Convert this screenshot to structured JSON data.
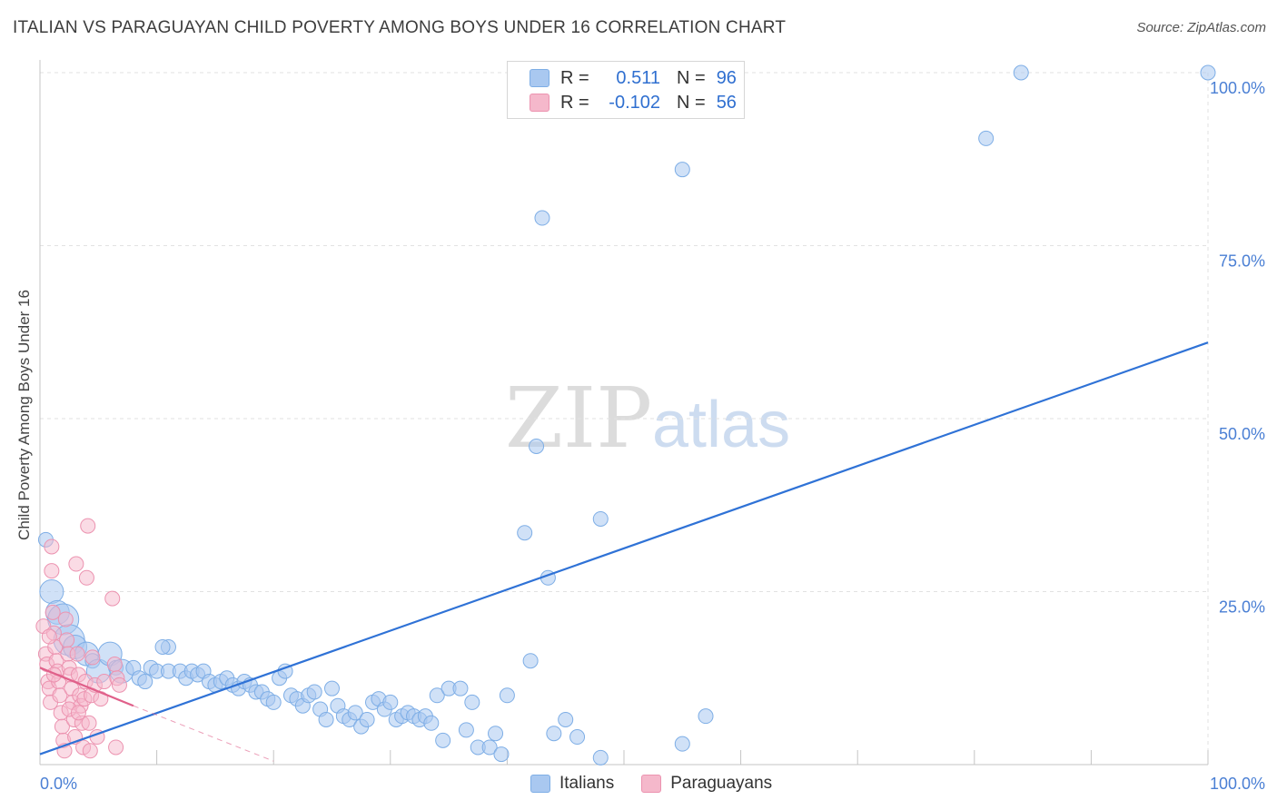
{
  "title": "ITALIAN VS PARAGUAYAN CHILD POVERTY AMONG BOYS UNDER 16 CORRELATION CHART",
  "source": "Source: ZipAtlas.com",
  "watermark": {
    "zip": "ZIP",
    "atlas": "atlas"
  },
  "legend": {
    "rows": [
      {
        "r_label": "R =",
        "r_value": "0.511",
        "n_label": "N =",
        "n_value": "96"
      },
      {
        "r_label": "R =",
        "r_value": "-0.102",
        "n_label": "N =",
        "n_value": "56"
      }
    ],
    "bottom": [
      "Italians",
      "Paraguayans"
    ]
  },
  "chart_data": {
    "type": "scatter",
    "title": "ITALIAN VS PARAGUAYAN CHILD POVERTY AMONG BOYS UNDER 16 CORRELATION CHART",
    "xlabel": "",
    "ylabel": "Child Poverty Among Boys Under 16",
    "xlim": [
      0,
      100
    ],
    "ylim": [
      0,
      100
    ],
    "x_tick_labels": [
      "0.0%",
      "100.0%"
    ],
    "y_tick_labels": [
      "25.0%",
      "50.0%",
      "75.0%",
      "100.0%"
    ],
    "y_ticks": [
      25,
      50,
      75,
      100
    ],
    "grid": true,
    "colors": {
      "italians_fill": "#a9c8f0",
      "italians_stroke": "#7eaee6",
      "italians_line": "#2f72d6",
      "paraguayans_fill": "#f5b8cb",
      "paraguayans_stroke": "#ec93b0",
      "paraguayans_line": "#e0608a",
      "tick_label": "#4a7fd4"
    },
    "series": [
      {
        "name": "Italians",
        "r": 0.511,
        "n": 96,
        "trend": {
          "x": [
            0,
            100
          ],
          "y": [
            1.5,
            61
          ]
        },
        "points": [
          {
            "x": 0.5,
            "y": 32.5,
            "s": 1
          },
          {
            "x": 1,
            "y": 25,
            "s": 2
          },
          {
            "x": 1.5,
            "y": 22,
            "s": 2
          },
          {
            "x": 2,
            "y": 21,
            "s": 3
          },
          {
            "x": 2.5,
            "y": 18,
            "s": 3
          },
          {
            "x": 3,
            "y": 17,
            "s": 2
          },
          {
            "x": 4,
            "y": 16,
            "s": 2
          },
          {
            "x": 4.5,
            "y": 15,
            "s": 1
          },
          {
            "x": 5,
            "y": 13.5,
            "s": 2
          },
          {
            "x": 6,
            "y": 16,
            "s": 2
          },
          {
            "x": 6.5,
            "y": 14,
            "s": 1
          },
          {
            "x": 7,
            "y": 13.5,
            "s": 2
          },
          {
            "x": 8,
            "y": 14,
            "s": 1
          },
          {
            "x": 8.5,
            "y": 12.5,
            "s": 1
          },
          {
            "x": 9,
            "y": 12,
            "s": 1
          },
          {
            "x": 9.5,
            "y": 14,
            "s": 1
          },
          {
            "x": 10,
            "y": 13.5,
            "s": 1
          },
          {
            "x": 11,
            "y": 17,
            "s": 1
          },
          {
            "x": 10.5,
            "y": 17,
            "s": 1
          },
          {
            "x": 11,
            "y": 13.5,
            "s": 1
          },
          {
            "x": 12,
            "y": 13.5,
            "s": 1
          },
          {
            "x": 12.5,
            "y": 12.5,
            "s": 1
          },
          {
            "x": 13,
            "y": 13.5,
            "s": 1
          },
          {
            "x": 13.5,
            "y": 13,
            "s": 1
          },
          {
            "x": 14,
            "y": 13.5,
            "s": 1
          },
          {
            "x": 14.5,
            "y": 12,
            "s": 1
          },
          {
            "x": 15,
            "y": 11.5,
            "s": 1
          },
          {
            "x": 15.5,
            "y": 12,
            "s": 1
          },
          {
            "x": 16,
            "y": 12.5,
            "s": 1
          },
          {
            "x": 16.5,
            "y": 11.5,
            "s": 1
          },
          {
            "x": 17,
            "y": 11,
            "s": 1
          },
          {
            "x": 17.5,
            "y": 12,
            "s": 1
          },
          {
            "x": 18,
            "y": 11.5,
            "s": 1
          },
          {
            "x": 18.5,
            "y": 10.5,
            "s": 1
          },
          {
            "x": 19,
            "y": 10.5,
            "s": 1
          },
          {
            "x": 19.5,
            "y": 9.5,
            "s": 1
          },
          {
            "x": 20,
            "y": 9,
            "s": 1
          },
          {
            "x": 20.5,
            "y": 12.5,
            "s": 1
          },
          {
            "x": 21,
            "y": 13.5,
            "s": 1
          },
          {
            "x": 21.5,
            "y": 10,
            "s": 1
          },
          {
            "x": 22,
            "y": 9.5,
            "s": 1
          },
          {
            "x": 22.5,
            "y": 8.5,
            "s": 1
          },
          {
            "x": 23,
            "y": 10,
            "s": 1
          },
          {
            "x": 23.5,
            "y": 10.5,
            "s": 1
          },
          {
            "x": 24,
            "y": 8,
            "s": 1
          },
          {
            "x": 24.5,
            "y": 6.5,
            "s": 1
          },
          {
            "x": 25,
            "y": 11,
            "s": 1
          },
          {
            "x": 25.5,
            "y": 8.5,
            "s": 1
          },
          {
            "x": 26,
            "y": 7,
            "s": 1
          },
          {
            "x": 26.5,
            "y": 6.5,
            "s": 1
          },
          {
            "x": 27,
            "y": 7.5,
            "s": 1
          },
          {
            "x": 27.5,
            "y": 5.5,
            "s": 1
          },
          {
            "x": 28,
            "y": 6.5,
            "s": 1
          },
          {
            "x": 28.5,
            "y": 9,
            "s": 1
          },
          {
            "x": 29,
            "y": 9.5,
            "s": 1
          },
          {
            "x": 29.5,
            "y": 8,
            "s": 1
          },
          {
            "x": 30,
            "y": 9,
            "s": 1
          },
          {
            "x": 30.5,
            "y": 6.5,
            "s": 1
          },
          {
            "x": 31,
            "y": 7,
            "s": 1
          },
          {
            "x": 31.5,
            "y": 7.5,
            "s": 1
          },
          {
            "x": 32,
            "y": 7,
            "s": 1
          },
          {
            "x": 32.5,
            "y": 6.5,
            "s": 1
          },
          {
            "x": 33,
            "y": 7,
            "s": 1
          },
          {
            "x": 33.5,
            "y": 6,
            "s": 1
          },
          {
            "x": 34,
            "y": 10,
            "s": 1
          },
          {
            "x": 34.5,
            "y": 3.5,
            "s": 1
          },
          {
            "x": 35,
            "y": 11,
            "s": 1
          },
          {
            "x": 36,
            "y": 11,
            "s": 1
          },
          {
            "x": 36.5,
            "y": 5,
            "s": 1
          },
          {
            "x": 37,
            "y": 9,
            "s": 1
          },
          {
            "x": 37.5,
            "y": 2.5,
            "s": 1
          },
          {
            "x": 38.5,
            "y": 2.5,
            "s": 1
          },
          {
            "x": 39,
            "y": 4.5,
            "s": 1
          },
          {
            "x": 39.5,
            "y": 1.5,
            "s": 1
          },
          {
            "x": 40,
            "y": 10,
            "s": 1
          },
          {
            "x": 41.5,
            "y": 33.5,
            "s": 1
          },
          {
            "x": 42,
            "y": 15,
            "s": 1
          },
          {
            "x": 42.5,
            "y": 46,
            "s": 1
          },
          {
            "x": 43,
            "y": 79,
            "s": 1
          },
          {
            "x": 43.5,
            "y": 27,
            "s": 1
          },
          {
            "x": 44,
            "y": 4.5,
            "s": 1
          },
          {
            "x": 45,
            "y": 6.5,
            "s": 1
          },
          {
            "x": 46,
            "y": 4,
            "s": 1
          },
          {
            "x": 48,
            "y": 35.5,
            "s": 1
          },
          {
            "x": 48,
            "y": 1,
            "s": 1
          },
          {
            "x": 55,
            "y": 86,
            "s": 1
          },
          {
            "x": 55,
            "y": 3,
            "s": 1
          },
          {
            "x": 57,
            "y": 7,
            "s": 1
          },
          {
            "x": 81,
            "y": 90.5,
            "s": 1
          },
          {
            "x": 84,
            "y": 100,
            "s": 1
          },
          {
            "x": 100,
            "y": 100,
            "s": 1
          }
        ]
      },
      {
        "name": "Paraguayans",
        "r": -0.102,
        "n": 56,
        "trend": {
          "x": [
            0,
            8
          ],
          "y": [
            14,
            8.5
          ]
        },
        "trend_extension": {
          "x": [
            8,
            20
          ],
          "y": [
            8.5,
            0.5
          ]
        },
        "points": [
          {
            "x": 0.3,
            "y": 20,
            "s": 1
          },
          {
            "x": 0.5,
            "y": 16,
            "s": 1
          },
          {
            "x": 0.6,
            "y": 14.5,
            "s": 1
          },
          {
            "x": 0.7,
            "y": 12,
            "s": 1
          },
          {
            "x": 0.8,
            "y": 11,
            "s": 1
          },
          {
            "x": 0.9,
            "y": 9,
            "s": 1
          },
          {
            "x": 1,
            "y": 31.5,
            "s": 1
          },
          {
            "x": 1,
            "y": 28,
            "s": 1
          },
          {
            "x": 1.1,
            "y": 22,
            "s": 1
          },
          {
            "x": 1.2,
            "y": 19,
            "s": 1
          },
          {
            "x": 1.3,
            "y": 17,
            "s": 1
          },
          {
            "x": 1.4,
            "y": 15,
            "s": 1
          },
          {
            "x": 1.5,
            "y": 13.5,
            "s": 1
          },
          {
            "x": 1.6,
            "y": 12,
            "s": 1
          },
          {
            "x": 1.7,
            "y": 10,
            "s": 1
          },
          {
            "x": 1.8,
            "y": 7.5,
            "s": 1
          },
          {
            "x": 1.9,
            "y": 5.5,
            "s": 1
          },
          {
            "x": 2,
            "y": 3.5,
            "s": 1
          },
          {
            "x": 2.1,
            "y": 2,
            "s": 1
          },
          {
            "x": 2.2,
            "y": 21,
            "s": 1
          },
          {
            "x": 2.3,
            "y": 18,
            "s": 1
          },
          {
            "x": 2.4,
            "y": 16,
            "s": 1
          },
          {
            "x": 2.5,
            "y": 14,
            "s": 1
          },
          {
            "x": 2.6,
            "y": 13,
            "s": 1
          },
          {
            "x": 2.7,
            "y": 11,
            "s": 1
          },
          {
            "x": 2.8,
            "y": 9,
            "s": 1
          },
          {
            "x": 2.9,
            "y": 6.5,
            "s": 1
          },
          {
            "x": 3,
            "y": 4,
            "s": 1
          },
          {
            "x": 3.1,
            "y": 29,
            "s": 1
          },
          {
            "x": 3.2,
            "y": 16,
            "s": 1
          },
          {
            "x": 3.3,
            "y": 13,
            "s": 1
          },
          {
            "x": 3.4,
            "y": 10,
            "s": 1
          },
          {
            "x": 3.5,
            "y": 8.5,
            "s": 1
          },
          {
            "x": 3.6,
            "y": 6,
            "s": 1
          },
          {
            "x": 3.7,
            "y": 2.5,
            "s": 1
          },
          {
            "x": 3.8,
            "y": 9.5,
            "s": 1
          },
          {
            "x": 3.9,
            "y": 12,
            "s": 1
          },
          {
            "x": 4,
            "y": 27,
            "s": 1
          },
          {
            "x": 4.1,
            "y": 34.5,
            "s": 1
          },
          {
            "x": 4.2,
            "y": 6,
            "s": 1
          },
          {
            "x": 4.3,
            "y": 2,
            "s": 1
          },
          {
            "x": 4.4,
            "y": 10,
            "s": 1
          },
          {
            "x": 4.5,
            "y": 15.5,
            "s": 1
          },
          {
            "x": 4.7,
            "y": 11.5,
            "s": 1
          },
          {
            "x": 4.9,
            "y": 4,
            "s": 1
          },
          {
            "x": 5.2,
            "y": 9.5,
            "s": 1
          },
          {
            "x": 5.5,
            "y": 12,
            "s": 1
          },
          {
            "x": 6.2,
            "y": 24,
            "s": 1
          },
          {
            "x": 6.4,
            "y": 14.5,
            "s": 1
          },
          {
            "x": 6.6,
            "y": 12.5,
            "s": 1
          },
          {
            "x": 6.8,
            "y": 11.5,
            "s": 1
          },
          {
            "x": 1.2,
            "y": 13,
            "s": 1
          },
          {
            "x": 0.8,
            "y": 18.5,
            "s": 1
          },
          {
            "x": 2.5,
            "y": 8,
            "s": 1
          },
          {
            "x": 3.3,
            "y": 7.5,
            "s": 1
          },
          {
            "x": 6.5,
            "y": 2.5,
            "s": 1
          }
        ]
      }
    ]
  }
}
